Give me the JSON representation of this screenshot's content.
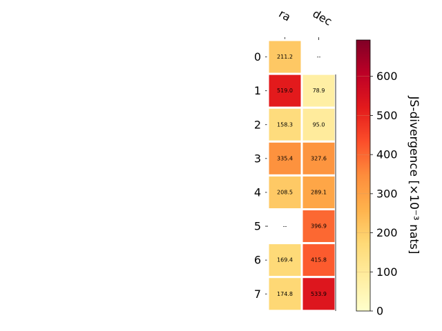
{
  "chart_data": {
    "type": "heatmap",
    "columns": [
      "ra",
      "dec"
    ],
    "rows": [
      "0",
      "1",
      "2",
      "3",
      "4",
      "5",
      "6",
      "7"
    ],
    "values": [
      [
        211.2,
        null
      ],
      [
        519.0,
        78.9
      ],
      [
        158.3,
        95.0
      ],
      [
        335.4,
        327.6
      ],
      [
        208.5,
        289.1
      ],
      [
        null,
        396.9
      ],
      [
        169.4,
        415.8
      ],
      [
        174.8,
        533.9
      ]
    ],
    "labels": [
      [
        "211.2",
        "--"
      ],
      [
        "519.0",
        "78.9"
      ],
      [
        "158.3",
        "95.0"
      ],
      [
        "335.4",
        "327.6"
      ],
      [
        "208.5",
        "289.1"
      ],
      [
        "--",
        "396.9"
      ],
      [
        "169.4",
        "415.8"
      ],
      [
        "174.8",
        "533.9"
      ]
    ],
    "colorbar": {
      "label": "JS-divergence [×10⁻³ nats]",
      "min": 0,
      "max": 693,
      "ticks": [
        0,
        100,
        200,
        300,
        400,
        500,
        600
      ],
      "colormap": "YlOrRd"
    },
    "colors": {
      "cell_border": "#ffffff",
      "light_text": "#ffffff",
      "dark_text": "#000000"
    }
  }
}
